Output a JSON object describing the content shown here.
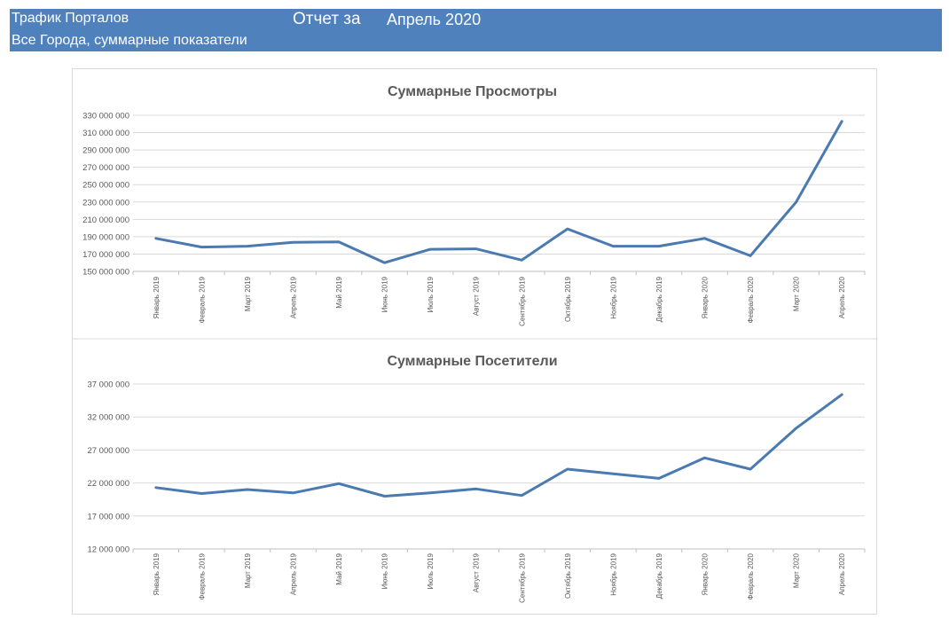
{
  "header": {
    "title": "Трафик Порталов",
    "subtitle": "Все Города, суммарные показатели",
    "report_label": "Отчет за",
    "period": "Апрель 2020",
    "bar_color": "#4f81bd"
  },
  "chart_data": [
    {
      "type": "line",
      "title": "Суммарные Просмотры",
      "xlabel": "",
      "ylabel": "",
      "grid": true,
      "legend": "none",
      "line_color": "#4a7ab0",
      "categories": [
        "Январь 2019",
        "Февраль 2019",
        "Март 2019",
        "Апрель 2019",
        "Май 2019",
        "Июнь 2019",
        "Июль 2019",
        "Август 2019",
        "Сентябрь 2019",
        "Октябрь 2019",
        "Ноябрь 2019",
        "Декабрь 2019",
        "Январь 2020",
        "Февраль 2020",
        "Март 2020",
        "Апрель 2020"
      ],
      "y_ticks": [
        "150 000 000",
        "170 000 000",
        "190 000 000",
        "210 000 000",
        "230 000 000",
        "250 000 000",
        "270 000 000",
        "290 000 000",
        "310 000 000",
        "330 000 000"
      ],
      "ylim": [
        150000000,
        330000000
      ],
      "values": [
        188000000,
        178000000,
        179000000,
        183500000,
        184000000,
        160000000,
        175500000,
        176000000,
        163000000,
        199000000,
        179000000,
        179000000,
        188000000,
        168000000,
        230000000,
        323000000
      ]
    },
    {
      "type": "line",
      "title": "Суммарные Посетители",
      "xlabel": "",
      "ylabel": "",
      "grid": true,
      "legend": "none",
      "line_color": "#4a7ab0",
      "categories": [
        "Январь 2019",
        "Февраль 2019",
        "Март 2019",
        "Апрель 2019",
        "Май 2019",
        "Июнь 2019",
        "Июль 2019",
        "Август 2019",
        "Сентябрь 2019",
        "Октябрь 2019",
        "Ноябрь 2019",
        "Декабрь 2019",
        "Январь 2020",
        "Февраль 2020",
        "Март 2020",
        "Апрель 2020"
      ],
      "y_ticks": [
        "12 000 000",
        "17 000 000",
        "22 000 000",
        "27 000 000",
        "32 000 000",
        "37 000 000"
      ],
      "ylim": [
        12000000,
        37000000
      ],
      "values": [
        21300000,
        20400000,
        21000000,
        20500000,
        21900000,
        20000000,
        20500000,
        21100000,
        20100000,
        24100000,
        23400000,
        22700000,
        25800000,
        24100000,
        30300000,
        35400000
      ]
    }
  ]
}
